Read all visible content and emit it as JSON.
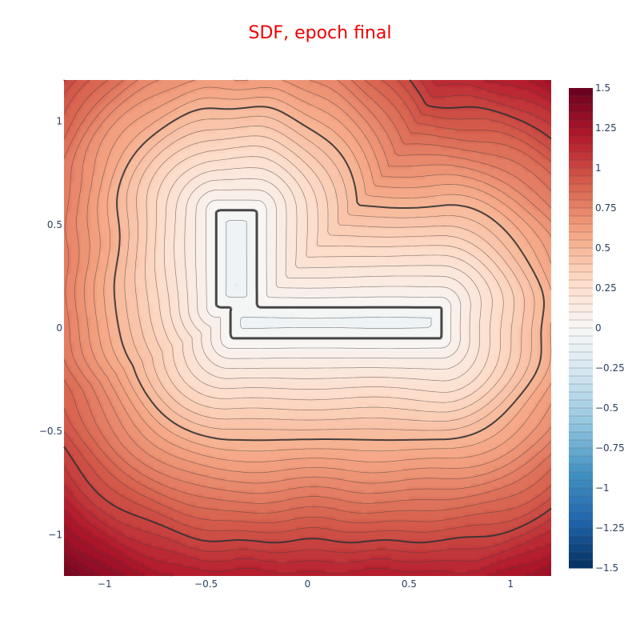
{
  "chart_data": {
    "type": "contour",
    "title": "SDF, epoch final",
    "title_color": "#ee0000",
    "xlabel": "",
    "ylabel": "",
    "xlim": [
      -1.2,
      1.2
    ],
    "ylim": [
      -1.2,
      1.2
    ],
    "x_ticks": [
      -1,
      -0.5,
      0,
      0.5,
      1
    ],
    "x_tick_labels": [
      "−1",
      "−0.5",
      "0",
      "0.5",
      "1"
    ],
    "y_ticks": [
      1,
      0.5,
      0,
      -0.5,
      -1
    ],
    "y_tick_labels": [
      "1",
      "0.5",
      "0",
      "−0.5",
      "−1"
    ],
    "colorscale": "RdBu (reversed)",
    "zlim": [
      -1.5,
      1.5
    ],
    "colorbar_ticks": [
      1.5,
      1.25,
      1,
      0.75,
      0.5,
      0.25,
      0,
      -0.25,
      -0.5,
      -0.75,
      -1,
      -1.25,
      -1.5
    ],
    "colorbar_tick_labels": [
      "1.5",
      "1.25",
      "1",
      "0.75",
      "0.5",
      "0.25",
      "0",
      "−0.25",
      "−0.5",
      "−0.75",
      "−1",
      "−1.25",
      "−1.5"
    ],
    "contour_step": 0.05,
    "highlighted_levels": [
      0,
      0.5,
      1
    ],
    "shape": {
      "vertical_bar": {
        "x": [
          -0.45,
          -0.25
        ],
        "y": [
          0.1,
          0.57
        ]
      },
      "horizontal_bar": {
        "x": [
          -0.38,
          0.66
        ],
        "y": [
          -0.05,
          0.1
        ]
      }
    }
  },
  "colors": {
    "low": "#053061",
    "zero": "#f7f7f7",
    "high": "#67001f",
    "contour_line": "#444444",
    "tick_text": "#2a3f5f"
  }
}
